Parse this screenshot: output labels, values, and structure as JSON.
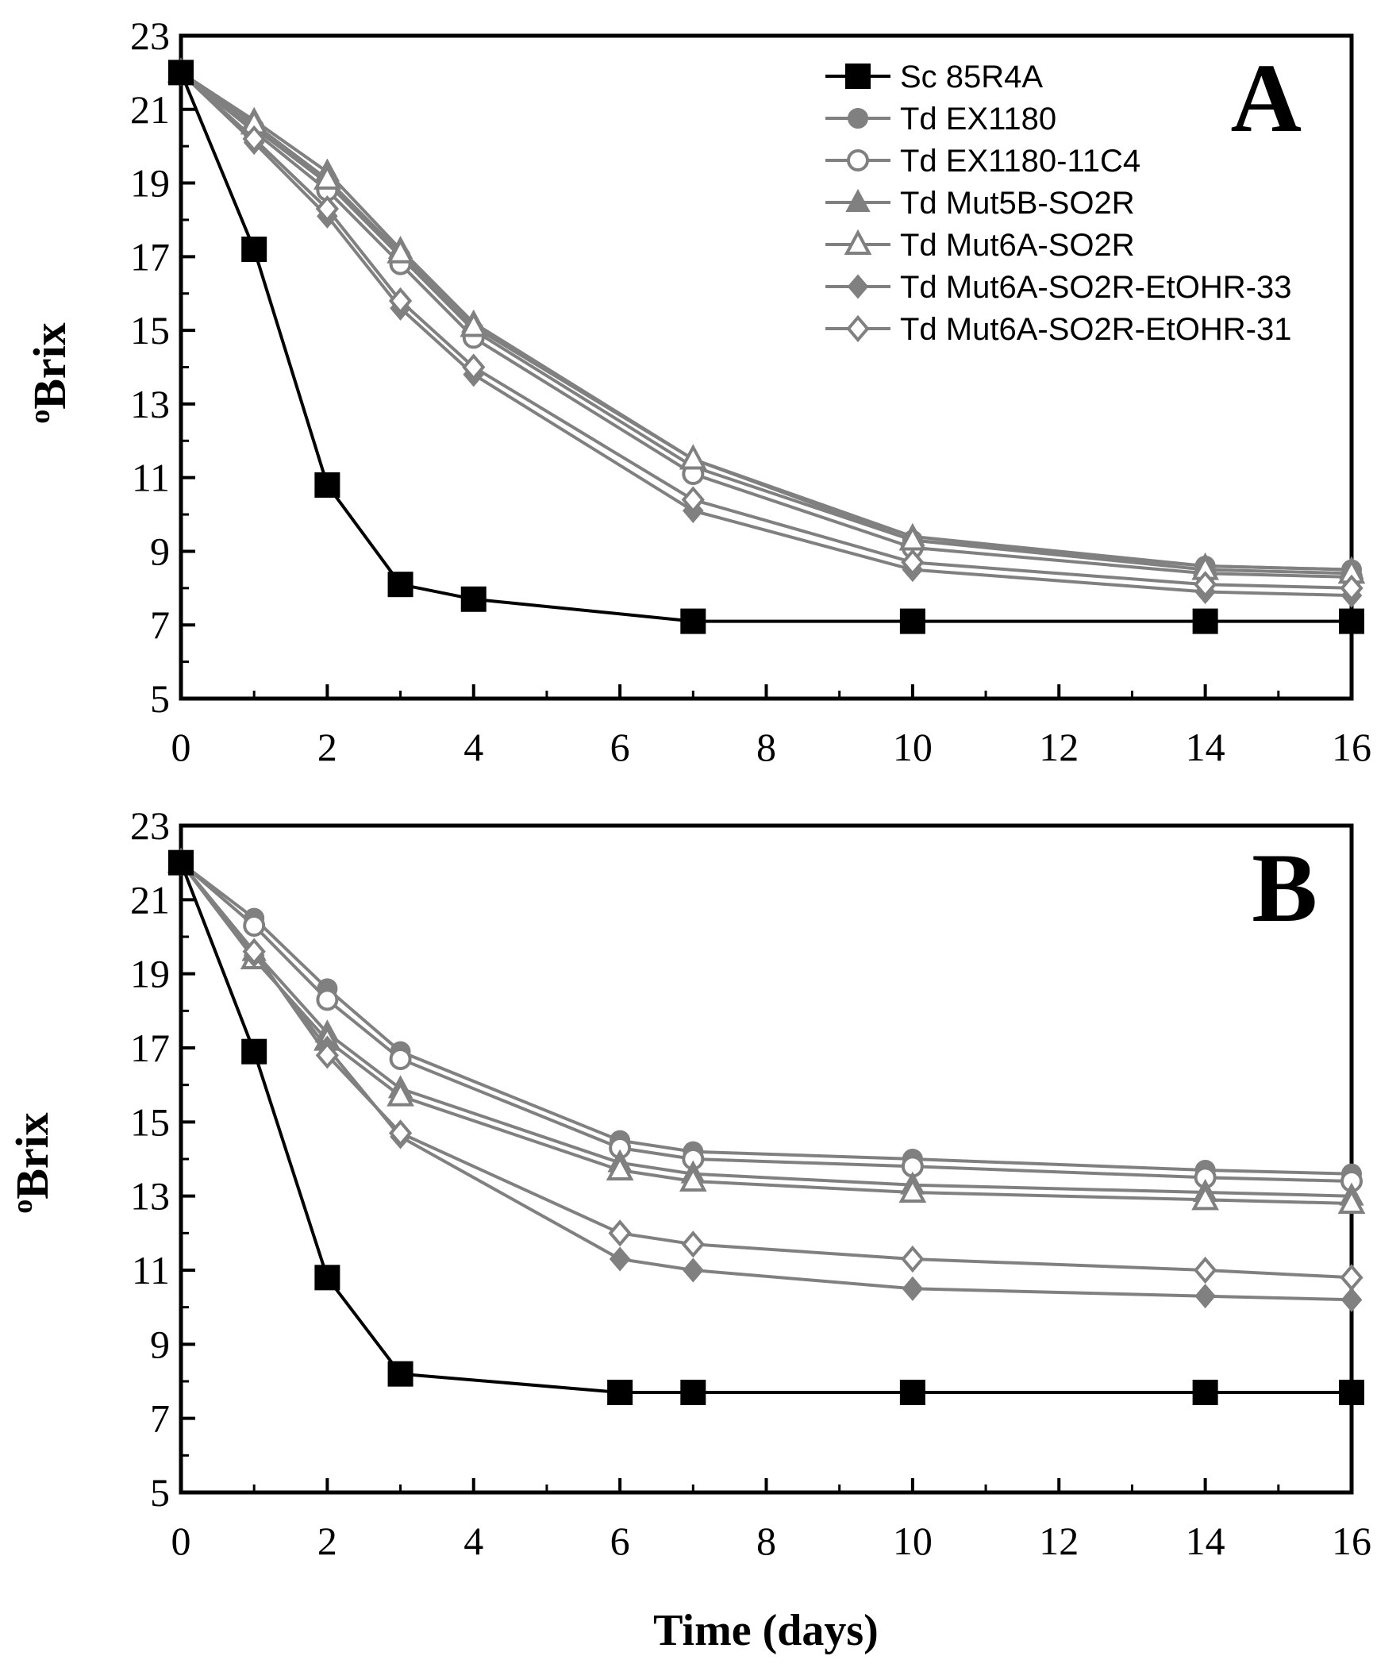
{
  "figure": {
    "x_axis_title": "Time (days)",
    "y_axis_title": "Brix",
    "y_axis_title_prefix": "o"
  },
  "chart_data": [
    {
      "type": "line",
      "panel": "A",
      "xlabel": "Time (days)",
      "ylabel": "°Brix",
      "xlim": [
        0,
        16
      ],
      "ylim": [
        5,
        23
      ],
      "x_ticks": [
        0,
        2,
        4,
        6,
        8,
        10,
        12,
        14,
        16
      ],
      "y_ticks": [
        5,
        7,
        9,
        11,
        13,
        15,
        17,
        19,
        21,
        23
      ],
      "legend_position": "top-right",
      "series": [
        {
          "name": "Sc 85R4A",
          "marker": "square-filled",
          "color": "#000000",
          "x": [
            0,
            1,
            2,
            3,
            4,
            7,
            10,
            14,
            16
          ],
          "y": [
            22,
            17.2,
            10.8,
            8.1,
            7.7,
            7.1,
            7.1,
            7.1,
            7.1
          ]
        },
        {
          "name": "Td  EX1180",
          "marker": "circle-filled",
          "color": "#808080",
          "x": [
            0,
            1,
            2,
            3,
            4,
            7,
            10,
            14,
            16
          ],
          "y": [
            22,
            20.5,
            19.0,
            17.0,
            15.0,
            11.3,
            9.3,
            8.6,
            8.5
          ]
        },
        {
          "name": "Td  EX1180-11C4",
          "marker": "circle-open",
          "color": "#808080",
          "x": [
            0,
            1,
            2,
            3,
            4,
            7,
            10,
            14,
            16
          ],
          "y": [
            22,
            20.4,
            18.8,
            16.8,
            14.8,
            11.1,
            9.1,
            8.4,
            8.3
          ]
        },
        {
          "name": "Td Mut5B-SO2R",
          "marker": "triangle-filled",
          "color": "#808080",
          "x": [
            0,
            1,
            2,
            3,
            4,
            7,
            10,
            14,
            16
          ],
          "y": [
            22,
            20.7,
            19.3,
            17.2,
            15.2,
            11.5,
            9.4,
            8.6,
            8.5
          ]
        },
        {
          "name": "Td Mut6A-SO2R",
          "marker": "triangle-open",
          "color": "#808080",
          "x": [
            0,
            1,
            2,
            3,
            4,
            7,
            10,
            14,
            16
          ],
          "y": [
            22,
            20.6,
            19.1,
            17.1,
            15.1,
            11.5,
            9.3,
            8.5,
            8.4
          ]
        },
        {
          "name": "Td Mut6A-SO2R-EtOHR-33",
          "marker": "diamond-filled",
          "color": "#808080",
          "x": [
            0,
            1,
            2,
            3,
            4,
            7,
            10,
            14,
            16
          ],
          "y": [
            22,
            20.1,
            18.1,
            15.6,
            13.8,
            10.1,
            8.5,
            7.9,
            7.8
          ]
        },
        {
          "name": "Td Mut6A-SO2R-EtOHR-31",
          "marker": "diamond-open",
          "color": "#808080",
          "x": [
            0,
            1,
            2,
            3,
            4,
            7,
            10,
            14,
            16
          ],
          "y": [
            22,
            20.2,
            18.3,
            15.8,
            14.0,
            10.4,
            8.7,
            8.1,
            8.0
          ]
        }
      ]
    },
    {
      "type": "line",
      "panel": "B",
      "xlabel": "Time (days)",
      "ylabel": "°Brix",
      "xlim": [
        0,
        16
      ],
      "ylim": [
        5,
        23
      ],
      "x_ticks": [
        0,
        2,
        4,
        6,
        8,
        10,
        12,
        14,
        16
      ],
      "y_ticks": [
        5,
        7,
        9,
        11,
        13,
        15,
        17,
        19,
        21,
        23
      ],
      "series": [
        {
          "name": "Sc 85R4A",
          "marker": "square-filled",
          "color": "#000000",
          "x": [
            0,
            1,
            2,
            3,
            6,
            7,
            10,
            14,
            16
          ],
          "y": [
            22,
            16.9,
            10.8,
            8.2,
            7.7,
            7.7,
            7.7,
            7.7,
            7.7
          ]
        },
        {
          "name": "Td  EX1180",
          "marker": "circle-filled",
          "color": "#808080",
          "x": [
            0,
            1,
            2,
            3,
            6,
            7,
            10,
            14,
            16
          ],
          "y": [
            22,
            20.5,
            18.6,
            16.9,
            14.5,
            14.2,
            14.0,
            13.7,
            13.6
          ]
        },
        {
          "name": "Td  EX1180-11C4",
          "marker": "circle-open",
          "color": "#808080",
          "x": [
            0,
            1,
            2,
            3,
            6,
            7,
            10,
            14,
            16
          ],
          "y": [
            22,
            20.3,
            18.3,
            16.7,
            14.3,
            14.0,
            13.8,
            13.5,
            13.4
          ]
        },
        {
          "name": "Td Mut5B-SO2R",
          "marker": "triangle-filled",
          "color": "#808080",
          "x": [
            0,
            1,
            2,
            3,
            6,
            7,
            10,
            14,
            16
          ],
          "y": [
            22,
            19.6,
            17.4,
            15.9,
            13.9,
            13.6,
            13.3,
            13.1,
            13.0
          ]
        },
        {
          "name": "Td Mut6A-SO2R",
          "marker": "triangle-open",
          "color": "#808080",
          "x": [
            0,
            1,
            2,
            3,
            6,
            7,
            10,
            14,
            16
          ],
          "y": [
            22,
            19.4,
            17.2,
            15.7,
            13.7,
            13.4,
            13.1,
            12.9,
            12.8
          ]
        },
        {
          "name": "Td Mut6A-SO2R-EtOHR-33",
          "marker": "diamond-filled",
          "color": "#808080",
          "x": [
            0,
            1,
            2,
            3,
            6,
            7,
            10,
            14,
            16
          ],
          "y": [
            22,
            19.5,
            17.0,
            14.6,
            11.3,
            11.0,
            10.5,
            10.3,
            10.2
          ]
        },
        {
          "name": "Td Mut6A-SO2R-EtOHR-31",
          "marker": "diamond-open",
          "color": "#808080",
          "x": [
            0,
            1,
            2,
            3,
            6,
            7,
            10,
            14,
            16
          ],
          "y": [
            22,
            19.6,
            16.8,
            14.7,
            12.0,
            11.7,
            11.3,
            11.0,
            10.8
          ]
        }
      ]
    }
  ]
}
